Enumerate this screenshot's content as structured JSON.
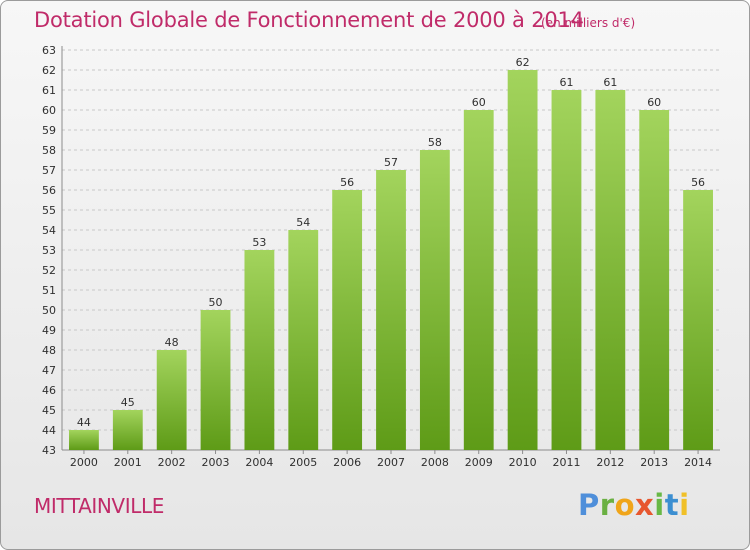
{
  "header": {
    "title": "Dotation Globale de Fonctionnement de 2000 à 2014",
    "subtitle": "(en milliers d'€)"
  },
  "footer": {
    "city": "MITTAINVILLE",
    "logo_text": "Proxiti",
    "logo_letters": [
      "P",
      "r",
      "o",
      "x",
      "i",
      "t",
      "i"
    ]
  },
  "colors": {
    "title": "#c02b69",
    "bar_top": "#a3d45d",
    "bar_bottom": "#5e9b17",
    "axis": "#8c8c8c",
    "grid": "#c8c8c8",
    "tick_text": "#303030"
  },
  "chart_data": {
    "type": "bar",
    "title": "Dotation Globale de Fonctionnement de 2000 à 2014",
    "subtitle": "(en milliers d'€)",
    "categories": [
      "2000",
      "2001",
      "2002",
      "2003",
      "2004",
      "2005",
      "2006",
      "2007",
      "2008",
      "2009",
      "2010",
      "2011",
      "2012",
      "2013",
      "2014"
    ],
    "values": [
      44,
      45,
      48,
      50,
      53,
      54,
      56,
      57,
      58,
      60,
      62,
      61,
      61,
      60,
      56
    ],
    "data_labels": [
      "44",
      "45",
      "48",
      "50",
      "53",
      "54",
      "56",
      "57",
      "58",
      "60",
      "62",
      "61",
      "61",
      "60",
      "56"
    ],
    "y_ticks": [
      43,
      44,
      45,
      46,
      47,
      48,
      49,
      50,
      51,
      52,
      53,
      54,
      55,
      56,
      57,
      58,
      59,
      60,
      61,
      62,
      63
    ],
    "ylim": [
      43,
      63
    ],
    "grid": true,
    "xlabel": "",
    "ylabel": ""
  }
}
